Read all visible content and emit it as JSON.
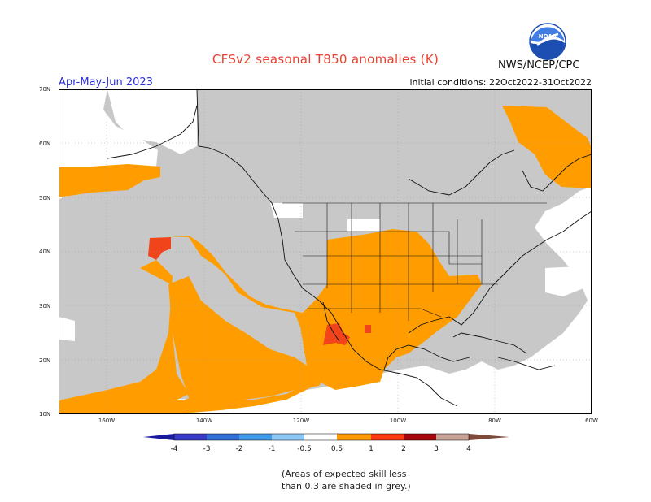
{
  "header": {
    "title": "CFSv2 seasonal T850 anomalies (K)",
    "season": "Apr-May-Jun 2023",
    "initial_conditions": "initial conditions: 22Oct2022-31Oct2022",
    "agency": "NWS/NCEP/CPC",
    "logo_text": "NOAA"
  },
  "axes": {
    "lat_labels": [
      "70N",
      "60N",
      "50N",
      "40N",
      "30N",
      "20N",
      "10N"
    ],
    "lon_labels": [
      "160W",
      "140W",
      "120W",
      "100W",
      "80W",
      "60W"
    ]
  },
  "legend": {
    "tick_labels": [
      "-4",
      "-3",
      "-2",
      "-1",
      "-0.5",
      "0.5",
      "1",
      "2",
      "3",
      "4"
    ],
    "colors": {
      "cold_4": "#1a1a9c",
      "cold_3": "#3a3ac8",
      "cold_2": "#2f6fd6",
      "cold_1": "#3f9ae8",
      "cold_05": "#8cc8f5",
      "neutral": "#ffffff",
      "warm_05": "#ff9900",
      "warm_1": "#ff3a12",
      "warm_2": "#a5070c",
      "warm_3": "#c8a294",
      "warm_4": "#7e4a3c"
    }
  },
  "map_colors": {
    "low_skill_grey": "#c8c8c8",
    "anomaly_orange": "#ff9d00",
    "anomaly_red": "#f2441a",
    "land_line": "#111111"
  },
  "note": {
    "line1": "(Areas of expected skill less",
    "line2": "than 0.3 are shaded in grey.)"
  }
}
